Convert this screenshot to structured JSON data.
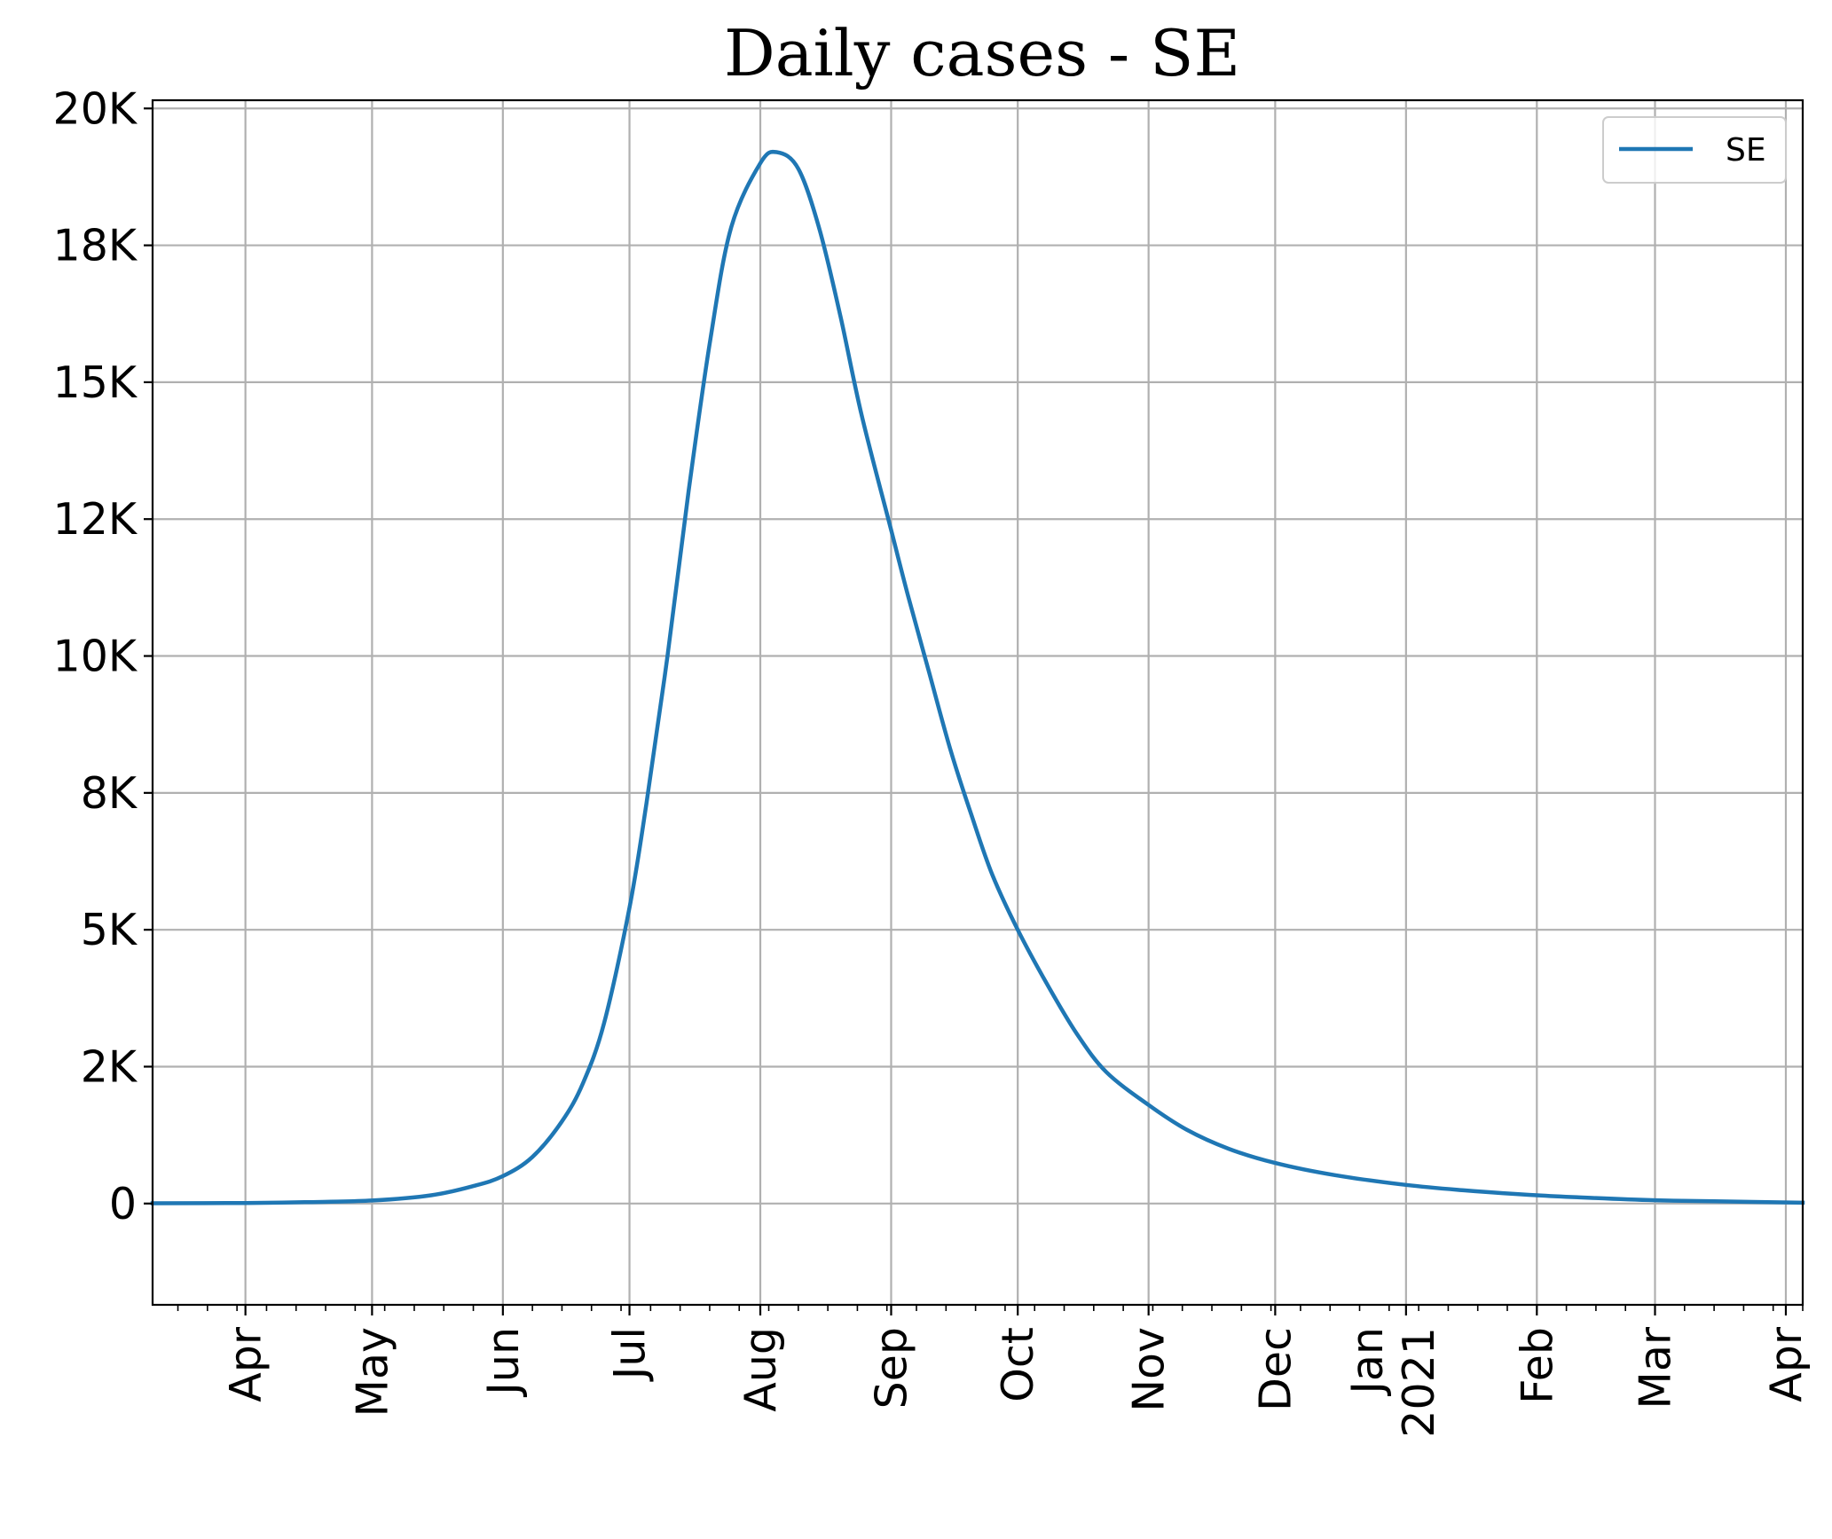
{
  "chart_data": {
    "type": "line",
    "title": "Daily cases - SE",
    "xlabel": "",
    "ylabel": "",
    "x_range": [
      "2020-03-10",
      "2021-04-05"
    ],
    "ylim": [
      -1850,
      20150
    ],
    "y_ticks": [
      {
        "value": 0,
        "label": "0"
      },
      {
        "value": 2500,
        "label": "2K"
      },
      {
        "value": 5000,
        "label": "5K"
      },
      {
        "value": 7500,
        "label": "8K"
      },
      {
        "value": 10000,
        "label": "10K"
      },
      {
        "value": 12500,
        "label": "12K"
      },
      {
        "value": 15000,
        "label": "15K"
      },
      {
        "value": 17500,
        "label": "18K"
      },
      {
        "value": 20000,
        "label": "20K"
      }
    ],
    "x_ticks": [
      {
        "date": "2020-04-01",
        "label": "Apr"
      },
      {
        "date": "2020-05-01",
        "label": "May"
      },
      {
        "date": "2020-06-01",
        "label": "Jun"
      },
      {
        "date": "2020-07-01",
        "label": "Jul"
      },
      {
        "date": "2020-08-01",
        "label": "Aug"
      },
      {
        "date": "2020-09-01",
        "label": "Sep"
      },
      {
        "date": "2020-10-01",
        "label": "Oct"
      },
      {
        "date": "2020-11-01",
        "label": "Nov"
      },
      {
        "date": "2020-12-01",
        "label": "Dec"
      },
      {
        "date": "2021-01-01",
        "label": "Jan",
        "sublabel": "2021"
      },
      {
        "date": "2021-02-01",
        "label": "Feb"
      },
      {
        "date": "2021-03-01",
        "label": "Mar"
      },
      {
        "date": "2021-04-01",
        "label": "Apr"
      }
    ],
    "grid": true,
    "legend_position": "top-right",
    "series": [
      {
        "name": "SE",
        "color": "#1f77b4",
        "points": [
          [
            "2020-03-10",
            5
          ],
          [
            "2020-04-01",
            10
          ],
          [
            "2020-04-15",
            25
          ],
          [
            "2020-05-01",
            55
          ],
          [
            "2020-05-15",
            150
          ],
          [
            "2020-05-25",
            320
          ],
          [
            "2020-06-01",
            500
          ],
          [
            "2020-06-08",
            850
          ],
          [
            "2020-06-15",
            1500
          ],
          [
            "2020-06-20",
            2200
          ],
          [
            "2020-06-25",
            3300
          ],
          [
            "2020-07-01",
            5400
          ],
          [
            "2020-07-05",
            7300
          ],
          [
            "2020-07-10",
            10000
          ],
          [
            "2020-07-15",
            13000
          ],
          [
            "2020-07-20",
            15700
          ],
          [
            "2020-07-25",
            17800
          ],
          [
            "2020-08-01",
            19000
          ],
          [
            "2020-08-05",
            19200
          ],
          [
            "2020-08-10",
            18900
          ],
          [
            "2020-08-15",
            17800
          ],
          [
            "2020-08-20",
            16200
          ],
          [
            "2020-08-25",
            14400
          ],
          [
            "2020-09-01",
            12300
          ],
          [
            "2020-09-05",
            11100
          ],
          [
            "2020-09-10",
            9700
          ],
          [
            "2020-09-15",
            8300
          ],
          [
            "2020-09-20",
            7100
          ],
          [
            "2020-09-25",
            6000
          ],
          [
            "2020-10-01",
            5000
          ],
          [
            "2020-10-08",
            4000
          ],
          [
            "2020-10-15",
            3100
          ],
          [
            "2020-10-22",
            2400
          ],
          [
            "2020-11-01",
            1800
          ],
          [
            "2020-11-10",
            1350
          ],
          [
            "2020-11-20",
            1000
          ],
          [
            "2020-12-01",
            740
          ],
          [
            "2020-12-15",
            520
          ],
          [
            "2021-01-01",
            340
          ],
          [
            "2021-01-15",
            240
          ],
          [
            "2021-02-01",
            150
          ],
          [
            "2021-02-15",
            100
          ],
          [
            "2021-03-01",
            60
          ],
          [
            "2021-03-15",
            40
          ],
          [
            "2021-04-05",
            15
          ]
        ]
      }
    ]
  }
}
